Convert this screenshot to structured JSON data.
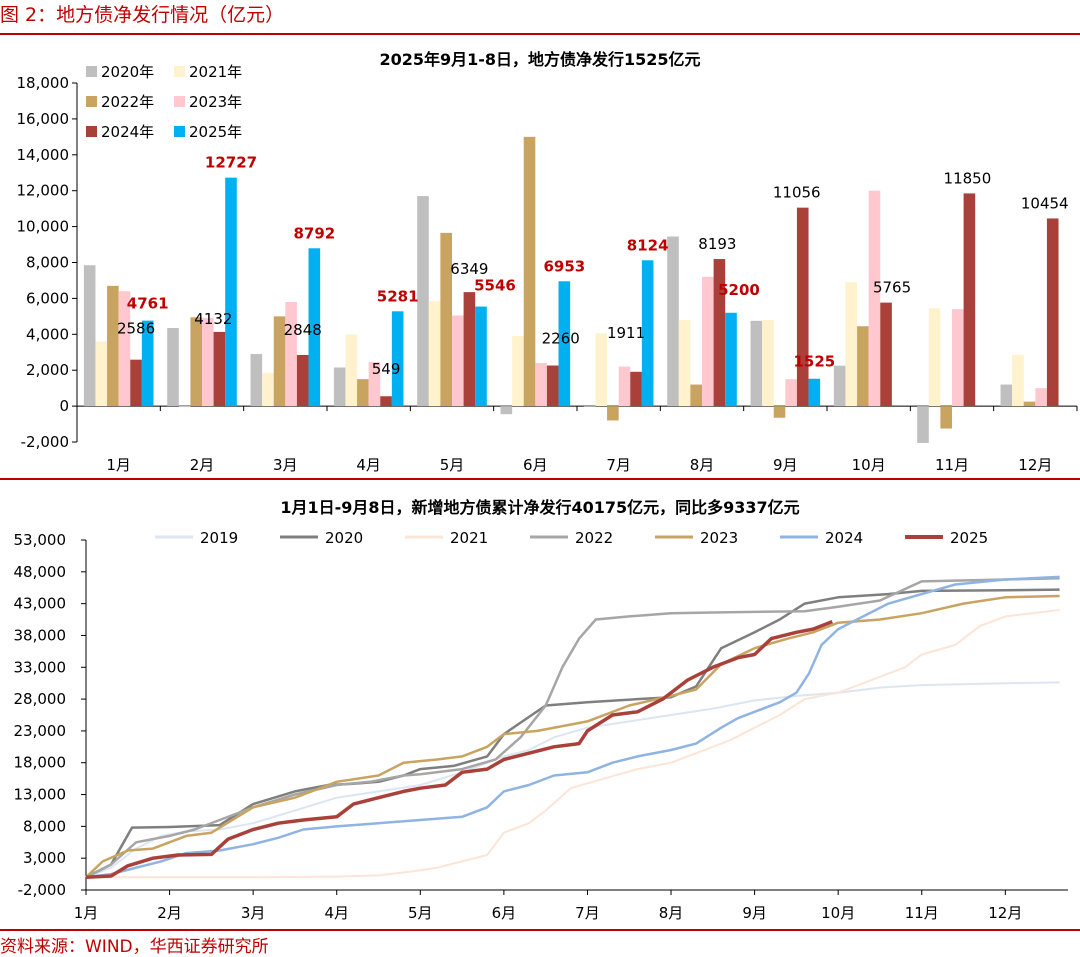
{
  "figure_title": "图 2：地方债净发行情况（亿元）",
  "source": "资料来源：WIND，华西证券研究所",
  "colors": {
    "accent": "#c00000",
    "s2020": "#bfbfbf",
    "s2021": "#fff2cc",
    "s2022": "#c9a461",
    "s2023": "#ffc7ce",
    "s2024": "#a9413a",
    "s2025": "#00b0f0",
    "l2019": "#dce6f2",
    "l2020": "#7f7f7f",
    "l2021": "#fce4d6",
    "l2022": "#a6a6a6",
    "l2023": "#c9a461",
    "l2024": "#8fb4e3",
    "l2025": "#a9413a"
  },
  "chart_data": [
    {
      "type": "bar",
      "title": "2025年9月1-8日，地方债净发行1525亿元",
      "categories": [
        "1月",
        "2月",
        "3月",
        "4月",
        "5月",
        "6月",
        "7月",
        "8月",
        "9月",
        "10月",
        "11月",
        "12月"
      ],
      "ylim": [
        -2000,
        18000
      ],
      "yticks": [
        "18,000",
        "16,000",
        "14,000",
        "12,000",
        "10,000",
        "8,000",
        "6,000",
        "4,000",
        "2,000",
        "0",
        "-2,000"
      ],
      "ytick_values": [
        18000,
        16000,
        14000,
        12000,
        10000,
        8000,
        6000,
        4000,
        2000,
        0,
        -2000
      ],
      "legend_position": "top-left",
      "series": [
        {
          "name": "2020年",
          "values": [
            7850,
            4350,
            2900,
            2150,
            11700,
            -450,
            0,
            9450,
            4750,
            2250,
            -2050,
            1200
          ]
        },
        {
          "name": "2021年",
          "values": [
            3600,
            0,
            1850,
            4000,
            5850,
            3900,
            4050,
            4800,
            4800,
            6900,
            5450,
            2850
          ]
        },
        {
          "name": "2022年",
          "values": [
            6700,
            4950,
            5000,
            1500,
            9650,
            15000,
            -800,
            1200,
            -650,
            4450,
            -1250,
            250
          ]
        },
        {
          "name": "2023年",
          "values": [
            6400,
            4900,
            5800,
            2450,
            5050,
            2400,
            2200,
            7200,
            1500,
            12000,
            5400,
            1000
          ]
        },
        {
          "name": "2024年",
          "values": [
            2586,
            4132,
            2848,
            549,
            6349,
            2260,
            1911,
            8193,
            11056,
            5765,
            11850,
            10454
          ]
        },
        {
          "name": "2025年",
          "values": [
            4761,
            12727,
            8792,
            5281,
            5546,
            6953,
            8124,
            5200,
            1525,
            null,
            null,
            null
          ]
        }
      ],
      "data_labels_2024": [
        "2586",
        "4132",
        "2848",
        "549",
        "6349",
        "2260",
        "1911",
        "8193",
        "11056",
        "5765",
        "11850",
        "10454"
      ],
      "data_labels_2025": [
        "4761",
        "12727",
        "8792",
        "5281",
        "5546",
        "6953",
        "8124",
        "5200",
        "1525"
      ]
    },
    {
      "type": "line",
      "title": "1月1日-9月8日，新增地方债累计净发行40175亿元，同比多9337亿元",
      "x_unit": "month",
      "xticks": [
        "1月",
        "2月",
        "3月",
        "4月",
        "5月",
        "6月",
        "7月",
        "8月",
        "9月",
        "10月",
        "11月",
        "12月"
      ],
      "ylim": [
        -2000,
        53000
      ],
      "yticks": [
        "53,000",
        "48,000",
        "43,000",
        "38,000",
        "33,000",
        "28,000",
        "23,000",
        "18,000",
        "13,000",
        "8,000",
        "3,000",
        "-2,000"
      ],
      "ytick_values": [
        53000,
        48000,
        43000,
        38000,
        33000,
        28000,
        23000,
        18000,
        13000,
        8000,
        3000,
        -2000
      ],
      "legend_position": "top",
      "series": [
        {
          "name": "2019",
          "points": [
            [
              1.0,
              0
            ],
            [
              1.3,
              1500
            ],
            [
              1.6,
              4500
            ],
            [
              1.9,
              6500
            ],
            [
              2.2,
              7200
            ],
            [
              2.6,
              7500
            ],
            [
              3.0,
              8500
            ],
            [
              3.5,
              10500
            ],
            [
              4.0,
              12500
            ],
            [
              4.5,
              13500
            ],
            [
              5.0,
              14500
            ],
            [
              5.5,
              16500
            ],
            [
              6.0,
              19000
            ],
            [
              6.3,
              20000
            ],
            [
              6.6,
              22000
            ],
            [
              7.0,
              23500
            ],
            [
              7.5,
              24500
            ],
            [
              8.0,
              25500
            ],
            [
              8.5,
              26500
            ],
            [
              9.0,
              27800
            ],
            [
              9.5,
              28500
            ],
            [
              10.0,
              29000
            ],
            [
              10.5,
              29800
            ],
            [
              11.0,
              30200
            ],
            [
              12.0,
              30500
            ],
            [
              12.65,
              30600
            ]
          ]
        },
        {
          "name": "2020",
          "points": [
            [
              1.0,
              0
            ],
            [
              1.3,
              2000
            ],
            [
              1.55,
              7800
            ],
            [
              2.0,
              7900
            ],
            [
              2.6,
              8200
            ],
            [
              3.0,
              11500
            ],
            [
              3.5,
              13500
            ],
            [
              3.9,
              14500
            ],
            [
              4.2,
              14700
            ],
            [
              4.5,
              15000
            ],
            [
              4.8,
              16000
            ],
            [
              5.0,
              17000
            ],
            [
              5.4,
              17500
            ],
            [
              5.8,
              19000
            ],
            [
              6.0,
              22500
            ],
            [
              6.5,
              27000
            ],
            [
              7.0,
              27500
            ],
            [
              7.6,
              28000
            ],
            [
              8.0,
              28300
            ],
            [
              8.3,
              30000
            ],
            [
              8.6,
              36000
            ],
            [
              9.0,
              38500
            ],
            [
              9.3,
              40500
            ],
            [
              9.6,
              43000
            ],
            [
              10.0,
              44000
            ],
            [
              10.6,
              44500
            ],
            [
              11.0,
              45000
            ],
            [
              12.0,
              45100
            ],
            [
              12.65,
              45200
            ]
          ]
        },
        {
          "name": "2021",
          "points": [
            [
              1.0,
              0
            ],
            [
              2.0,
              0
            ],
            [
              3.0,
              0
            ],
            [
              4.0,
              100
            ],
            [
              4.5,
              300
            ],
            [
              4.9,
              900
            ],
            [
              5.2,
              1500
            ],
            [
              5.5,
              2500
            ],
            [
              5.8,
              3500
            ],
            [
              6.0,
              7000
            ],
            [
              6.3,
              8500
            ],
            [
              6.5,
              10500
            ],
            [
              6.8,
              14000
            ],
            [
              7.2,
              15500
            ],
            [
              7.6,
              17000
            ],
            [
              8.0,
              18000
            ],
            [
              8.3,
              19500
            ],
            [
              8.7,
              21500
            ],
            [
              9.0,
              23500
            ],
            [
              9.3,
              25500
            ],
            [
              9.6,
              28000
            ],
            [
              10.0,
              29000
            ],
            [
              10.4,
              31000
            ],
            [
              10.8,
              33000
            ],
            [
              11.0,
              35000
            ],
            [
              11.4,
              36500
            ],
            [
              11.7,
              39500
            ],
            [
              12.0,
              41000
            ],
            [
              12.65,
              42000
            ]
          ]
        },
        {
          "name": "2022",
          "points": [
            [
              1.0,
              0
            ],
            [
              1.3,
              2000
            ],
            [
              1.6,
              5500
            ],
            [
              2.0,
              6500
            ],
            [
              2.3,
              7500
            ],
            [
              2.6,
              9000
            ],
            [
              3.0,
              11000
            ],
            [
              3.5,
              13000
            ],
            [
              4.0,
              14500
            ],
            [
              4.4,
              15000
            ],
            [
              4.8,
              16000
            ],
            [
              5.0,
              16200
            ],
            [
              5.5,
              17000
            ],
            [
              5.9,
              18500
            ],
            [
              6.2,
              22000
            ],
            [
              6.5,
              27000
            ],
            [
              6.7,
              33000
            ],
            [
              6.9,
              37500
            ],
            [
              7.1,
              40500
            ],
            [
              7.5,
              41000
            ],
            [
              8.0,
              41500
            ],
            [
              8.5,
              41600
            ],
            [
              9.0,
              41700
            ],
            [
              9.6,
              41800
            ],
            [
              10.0,
              42500
            ],
            [
              10.5,
              43500
            ],
            [
              11.0,
              46500
            ],
            [
              12.0,
              46800
            ],
            [
              12.65,
              47000
            ]
          ]
        },
        {
          "name": "2023",
          "points": [
            [
              1.0,
              0
            ],
            [
              1.2,
              2500
            ],
            [
              1.5,
              4200
            ],
            [
              1.8,
              4500
            ],
            [
              2.2,
              6500
            ],
            [
              2.5,
              7000
            ],
            [
              3.0,
              11000
            ],
            [
              3.5,
              12500
            ],
            [
              4.0,
              15000
            ],
            [
              4.5,
              16000
            ],
            [
              4.8,
              18000
            ],
            [
              5.2,
              18500
            ],
            [
              5.5,
              19000
            ],
            [
              5.8,
              20500
            ],
            [
              6.0,
              22500
            ],
            [
              6.4,
              23000
            ],
            [
              7.0,
              24500
            ],
            [
              7.5,
              27000
            ],
            [
              8.0,
              28500
            ],
            [
              8.3,
              29500
            ],
            [
              8.6,
              33500
            ],
            [
              9.0,
              36000
            ],
            [
              9.4,
              37500
            ],
            [
              9.7,
              38500
            ],
            [
              10.0,
              40000
            ],
            [
              10.5,
              40500
            ],
            [
              11.0,
              41500
            ],
            [
              11.5,
              43000
            ],
            [
              12.0,
              44000
            ],
            [
              12.65,
              44200
            ]
          ]
        },
        {
          "name": "2024",
          "points": [
            [
              1.0,
              0
            ],
            [
              1.3,
              500
            ],
            [
              1.6,
              1500
            ],
            [
              1.9,
              2500
            ],
            [
              2.2,
              3800
            ],
            [
              2.6,
              4200
            ],
            [
              3.0,
              5200
            ],
            [
              3.3,
              6200
            ],
            [
              3.6,
              7500
            ],
            [
              4.0,
              8000
            ],
            [
              4.5,
              8500
            ],
            [
              5.0,
              9000
            ],
            [
              5.5,
              9500
            ],
            [
              5.8,
              11000
            ],
            [
              6.0,
              13500
            ],
            [
              6.3,
              14500
            ],
            [
              6.6,
              16000
            ],
            [
              7.0,
              16500
            ],
            [
              7.3,
              18000
            ],
            [
              7.6,
              19000
            ],
            [
              8.0,
              20000
            ],
            [
              8.3,
              21000
            ],
            [
              8.6,
              23500
            ],
            [
              8.8,
              25000
            ],
            [
              9.0,
              26000
            ],
            [
              9.3,
              27500
            ],
            [
              9.5,
              29000
            ],
            [
              9.65,
              32000
            ],
            [
              9.8,
              36500
            ],
            [
              10.0,
              39000
            ],
            [
              10.3,
              41000
            ],
            [
              10.6,
              43000
            ],
            [
              11.0,
              44500
            ],
            [
              11.4,
              46000
            ],
            [
              12.0,
              46800
            ],
            [
              12.65,
              47200
            ]
          ]
        },
        {
          "name": "2025",
          "points": [
            [
              1.0,
              0
            ],
            [
              1.3,
              200
            ],
            [
              1.5,
              1800
            ],
            [
              1.8,
              3000
            ],
            [
              2.1,
              3500
            ],
            [
              2.5,
              3600
            ],
            [
              2.7,
              6000
            ],
            [
              3.0,
              7500
            ],
            [
              3.3,
              8500
            ],
            [
              3.6,
              9000
            ],
            [
              4.0,
              9500
            ],
            [
              4.2,
              11500
            ],
            [
              4.5,
              12500
            ],
            [
              4.8,
              13500
            ],
            [
              5.0,
              14000
            ],
            [
              5.3,
              14500
            ],
            [
              5.5,
              16500
            ],
            [
              5.8,
              17000
            ],
            [
              6.0,
              18500
            ],
            [
              6.3,
              19500
            ],
            [
              6.6,
              20500
            ],
            [
              6.9,
              21000
            ],
            [
              7.0,
              23000
            ],
            [
              7.3,
              25500
            ],
            [
              7.6,
              26000
            ],
            [
              7.9,
              28000
            ],
            [
              8.2,
              31000
            ],
            [
              8.5,
              33000
            ],
            [
              8.8,
              34500
            ],
            [
              9.0,
              35000
            ],
            [
              9.2,
              37500
            ],
            [
              9.5,
              38500
            ],
            [
              9.7,
              39000
            ],
            [
              9.93,
              40175
            ]
          ]
        }
      ]
    }
  ]
}
